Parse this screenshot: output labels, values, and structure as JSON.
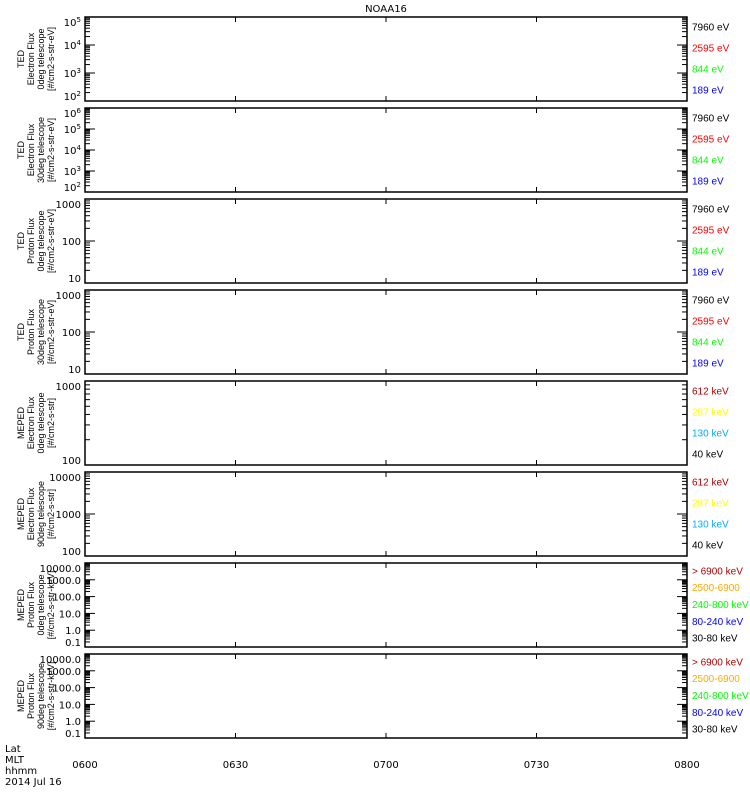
{
  "chart_data": {
    "type": "line",
    "title": "NOAA16",
    "x_ticks": [
      "0600",
      "0630",
      "0700",
      "0730",
      "0800"
    ],
    "x_range": [
      "0600",
      "0800"
    ],
    "footer_labels": [
      "Lat",
      "MLT",
      "hhmm",
      "2014 Jul 16"
    ],
    "panels": [
      {
        "ylabel": [
          "TED",
          "Electron Flux",
          "0deg telescope",
          "[#/cm2-s-str-eV]"
        ],
        "ylim": [
          100,
          100000
        ],
        "yticks": [
          100,
          1000,
          10000,
          100000
        ],
        "format": "exp",
        "legend": [
          {
            "text": "7960 eV",
            "color": "#000000"
          },
          {
            "text": "2595 eV",
            "color": "#ff0000"
          },
          {
            "text": "844 eV",
            "color": "#00ff00"
          },
          {
            "text": "189 eV",
            "color": "#0000ff"
          }
        ],
        "series": []
      },
      {
        "ylabel": [
          "TED",
          "Electron Flux",
          "30deg telescope",
          "[#/cm2-s-str-eV]"
        ],
        "ylim": [
          100,
          1000000
        ],
        "yticks": [
          100,
          1000,
          10000,
          100000,
          1000000
        ],
        "format": "exp",
        "legend": [
          {
            "text": "7960 eV",
            "color": "#000000"
          },
          {
            "text": "2595 eV",
            "color": "#ff0000"
          },
          {
            "text": "844 eV",
            "color": "#00ff00"
          },
          {
            "text": "189 eV",
            "color": "#0000ff"
          }
        ],
        "series": []
      },
      {
        "ylabel": [
          "TED",
          "Proton Flux",
          "0deg telescope",
          "[#/cm2-s-str-eV]"
        ],
        "ylim": [
          10,
          1000
        ],
        "yticks": [
          10,
          100,
          1000
        ],
        "format": "int",
        "legend": [
          {
            "text": "7960 eV",
            "color": "#000000"
          },
          {
            "text": "2595 eV",
            "color": "#ff0000"
          },
          {
            "text": "844 eV",
            "color": "#00ff00"
          },
          {
            "text": "189 eV",
            "color": "#0000ff"
          }
        ],
        "series": []
      },
      {
        "ylabel": [
          "TED",
          "Proton Flux",
          "30deg telescope",
          "[#/cm2-s-str-eV]"
        ],
        "ylim": [
          10,
          1000
        ],
        "yticks": [
          10,
          100,
          1000
        ],
        "format": "int",
        "legend": [
          {
            "text": "7960 eV",
            "color": "#000000"
          },
          {
            "text": "2595 eV",
            "color": "#ff0000"
          },
          {
            "text": "844 eV",
            "color": "#00ff00"
          },
          {
            "text": "189 eV",
            "color": "#0000ff"
          }
        ],
        "series": []
      },
      {
        "ylabel": [
          "MEPED",
          "Electron Flux",
          "0deg telescope",
          "[#/cm2-s-str]"
        ],
        "ylim": [
          100,
          1000
        ],
        "yticks": [
          100,
          1000
        ],
        "format": "int",
        "legend": [
          {
            "text": "612 keV",
            "color": "#b00000"
          },
          {
            "text": "287 keV",
            "color": "#ffff00"
          },
          {
            "text": "130 keV",
            "color": "#00aaff"
          },
          {
            "text": "40 keV",
            "color": "#000000"
          }
        ],
        "series": []
      },
      {
        "ylabel": [
          "MEPED",
          "Electron Flux",
          "90deg telescope",
          "[#/cm2-s-str]"
        ],
        "ylim": [
          100,
          10000
        ],
        "yticks": [
          100,
          1000,
          10000
        ],
        "format": "int",
        "legend": [
          {
            "text": "612 keV",
            "color": "#b00000"
          },
          {
            "text": "287 keV",
            "color": "#ffff00"
          },
          {
            "text": "130 keV",
            "color": "#00aaff"
          },
          {
            "text": "40 keV",
            "color": "#000000"
          }
        ],
        "series": []
      },
      {
        "ylabel": [
          "MEPED",
          "Proton Flux",
          "0deg telescope",
          "[#/cm2-s-str-keV]"
        ],
        "ylim": [
          0.1,
          10000
        ],
        "yticks": [
          0.1,
          1,
          10,
          100,
          1000,
          10000
        ],
        "format": "dec",
        "legend": [
          {
            "text": "> 6900 keV",
            "color": "#b00000"
          },
          {
            "text": "2500-6900",
            "color": "#ffaa00"
          },
          {
            "text": "240-800 keV",
            "color": "#00ff00"
          },
          {
            "text": "80-240 keV",
            "color": "#0000ff"
          },
          {
            "text": "30-80 keV",
            "color": "#000000"
          }
        ],
        "series": []
      },
      {
        "ylabel": [
          "MEPED",
          "Proton Flux",
          "90deg telescope",
          "[#/cm2-s-str-keV]"
        ],
        "ylim": [
          0.1,
          10000
        ],
        "yticks": [
          0.1,
          1,
          10,
          100,
          1000,
          10000
        ],
        "format": "dec",
        "legend": [
          {
            "text": "> 6900 keV",
            "color": "#b00000"
          },
          {
            "text": "2500-6900",
            "color": "#ffaa00"
          },
          {
            "text": "240-800 keV",
            "color": "#00ff00"
          },
          {
            "text": "80-240 keV",
            "color": "#0000ff"
          },
          {
            "text": "30-80 keV",
            "color": "#000000"
          }
        ],
        "series": []
      }
    ]
  }
}
